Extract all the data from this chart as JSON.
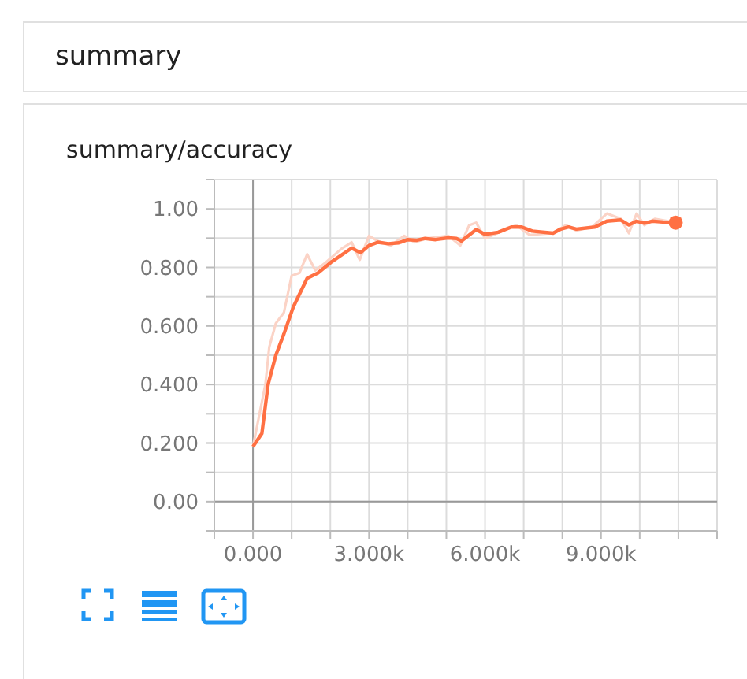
{
  "chart_data": {
    "type": "line",
    "title": "summary",
    "subtitle": "summary/accuracy",
    "x": [
      0,
      230,
      390,
      590,
      800,
      1040,
      1400,
      1680,
      2010,
      2550,
      2780,
      3000,
      3230,
      3500,
      3770,
      4000,
      4240,
      4450,
      4720,
      5050,
      5260,
      5390,
      5770,
      6000,
      6340,
      6680,
      6950,
      7220,
      7760,
      7960,
      8160,
      8360,
      8840,
      9150,
      9510,
      9720,
      9920,
      10120,
      10320,
      10590,
      10930
    ],
    "series": [
      {
        "color": "#ff7043",
        "values": [
          0.188,
          0.233,
          0.4,
          0.5,
          0.573,
          0.664,
          0.763,
          0.781,
          0.817,
          0.866,
          0.85,
          0.875,
          0.886,
          0.881,
          0.884,
          0.895,
          0.893,
          0.899,
          0.895,
          0.901,
          0.899,
          0.89,
          0.929,
          0.913,
          0.92,
          0.938,
          0.938,
          0.924,
          0.917,
          0.931,
          0.938,
          0.931,
          0.938,
          0.958,
          0.962,
          0.945,
          0.958,
          0.951,
          0.958,
          0.955,
          0.953
        ]
      },
      {
        "color": "#fbd3c6",
        "x": [
          0,
          320,
          420,
          590,
          800,
          1000,
          1200,
          1400,
          1610,
          1880,
          2280,
          2550,
          2760,
          3000,
          3230,
          3570,
          3910,
          4180,
          4510,
          5050,
          5360,
          5590,
          5770,
          6000,
          6470,
          6810,
          7150,
          7760,
          8090,
          8360,
          8770,
          9150,
          9510,
          9720,
          9920,
          10120,
          10390,
          10930
        ],
        "values": [
          0.188,
          0.4,
          0.528,
          0.609,
          0.646,
          0.772,
          0.781,
          0.845,
          0.79,
          0.817,
          0.863,
          0.886,
          0.826,
          0.908,
          0.89,
          0.875,
          0.908,
          0.886,
          0.899,
          0.908,
          0.875,
          0.944,
          0.953,
          0.899,
          0.926,
          0.944,
          0.911,
          0.917,
          0.944,
          0.926,
          0.938,
          0.984,
          0.966,
          0.917,
          0.984,
          0.944,
          0.966,
          0.953
        ]
      }
    ],
    "xlim": [
      -1000,
      12000
    ],
    "xticks": [
      {
        "value": -1000,
        "label": null
      },
      {
        "value": 0,
        "label": "0.000"
      },
      {
        "value": 1000,
        "label": null
      },
      {
        "value": 2000,
        "label": null
      },
      {
        "value": 3000,
        "label": "3.000k"
      },
      {
        "value": 4000,
        "label": null
      },
      {
        "value": 5000,
        "label": null
      },
      {
        "value": 6000,
        "label": "6.000k"
      },
      {
        "value": 7000,
        "label": null
      },
      {
        "value": 8000,
        "label": null
      },
      {
        "value": 9000,
        "label": "9.000k"
      },
      {
        "value": 10000,
        "label": null
      },
      {
        "value": 11000,
        "label": null
      },
      {
        "value": 12000,
        "label": null
      }
    ],
    "ylim": [
      -0.1,
      1.1
    ],
    "yticks": [
      {
        "value": -0.1,
        "label": null
      },
      {
        "value": 0,
        "label": "0.00"
      },
      {
        "value": 0.1,
        "label": null
      },
      {
        "value": 0.2,
        "label": "0.200"
      },
      {
        "value": 0.3,
        "label": null
      },
      {
        "value": 0.4,
        "label": "0.400"
      },
      {
        "value": 0.5,
        "label": null
      },
      {
        "value": 0.6,
        "label": "0.600"
      },
      {
        "value": 0.7,
        "label": null
      },
      {
        "value": 0.8,
        "label": "0.800"
      },
      {
        "value": 0.9,
        "label": null
      },
      {
        "value": 1,
        "label": "1.00"
      },
      {
        "value": 1.1,
        "label": null
      }
    ],
    "grid": true,
    "marker": "none",
    "line_style": "solid"
  }
}
